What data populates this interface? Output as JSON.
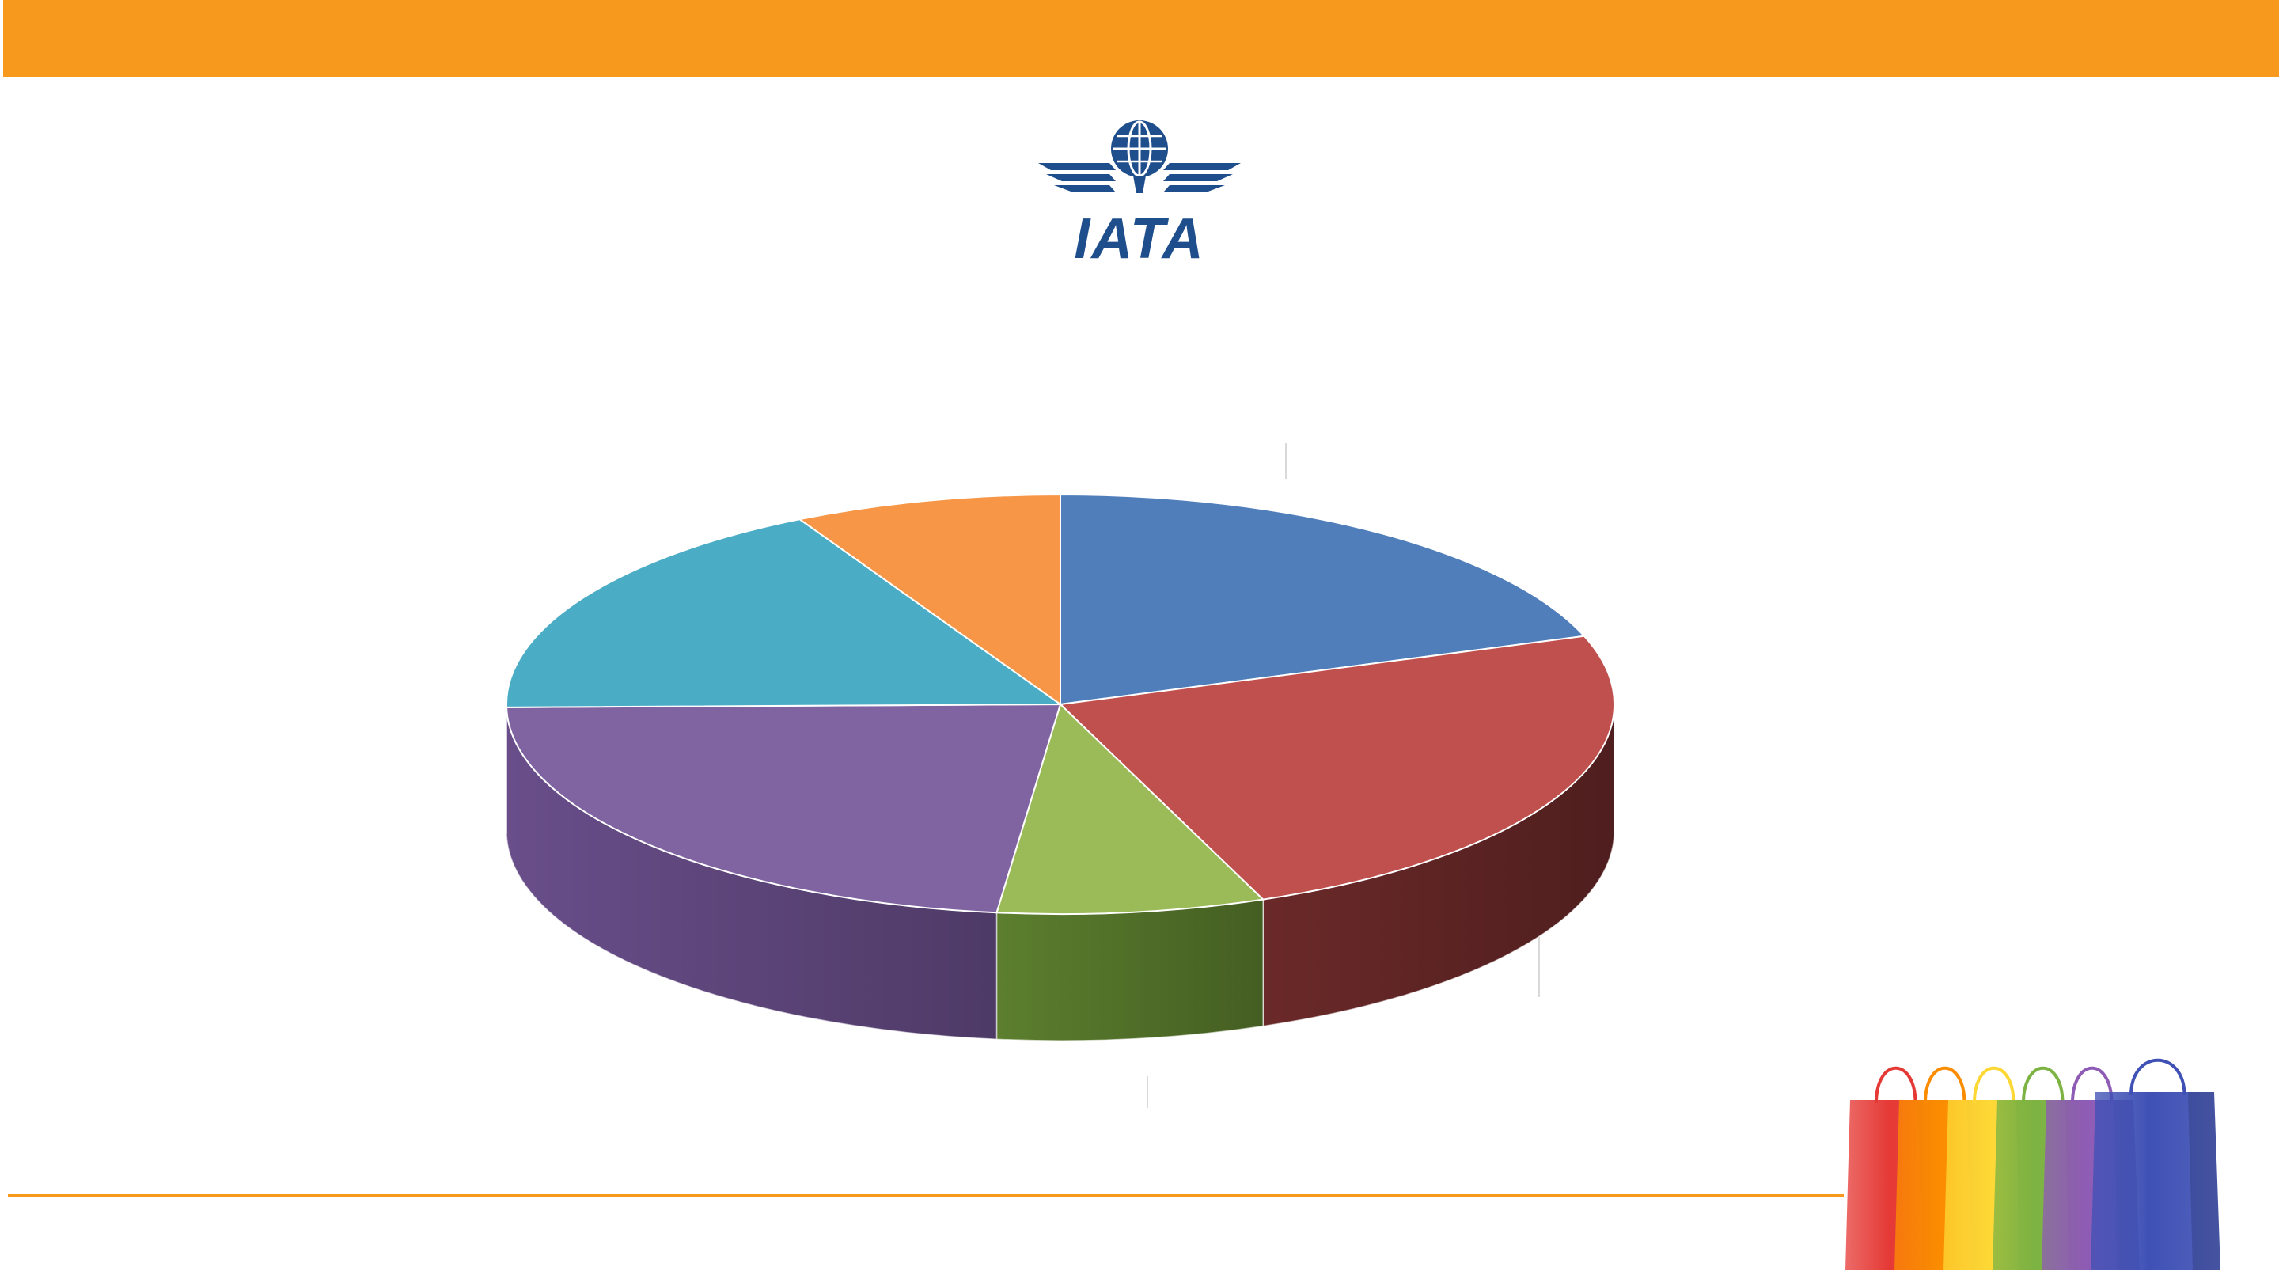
{
  "slide": {
    "accent_color": "#F7991C",
    "rule_color": "#F7991C"
  },
  "logo": {
    "name": "IATA",
    "text": "IATA",
    "color": "#1F4E8C"
  },
  "chart_data": {
    "type": "pie",
    "style": "3d",
    "title": "",
    "legend": "none",
    "data_labels": "none",
    "series": [
      {
        "values": [
          21.5,
          26.5,
          8.5,
          25.0,
          19.0,
          8.5
        ],
        "colors": [
          "#4F7EBB",
          "#C0504D",
          "#9BBB59",
          "#8064A2",
          "#4BACC6",
          "#F79646"
        ],
        "side_colors": [
          "#34557F",
          "#4F1E1E",
          "#445E22",
          "#4E3A66",
          "#2E6E80",
          "#9E5A22"
        ]
      }
    ]
  },
  "decoration": {
    "name": "shopping-bags",
    "colors": [
      "#E53935",
      "#FB8C00",
      "#FDD835",
      "#7CB342",
      "#8E5BB5",
      "#3F51B5"
    ]
  }
}
